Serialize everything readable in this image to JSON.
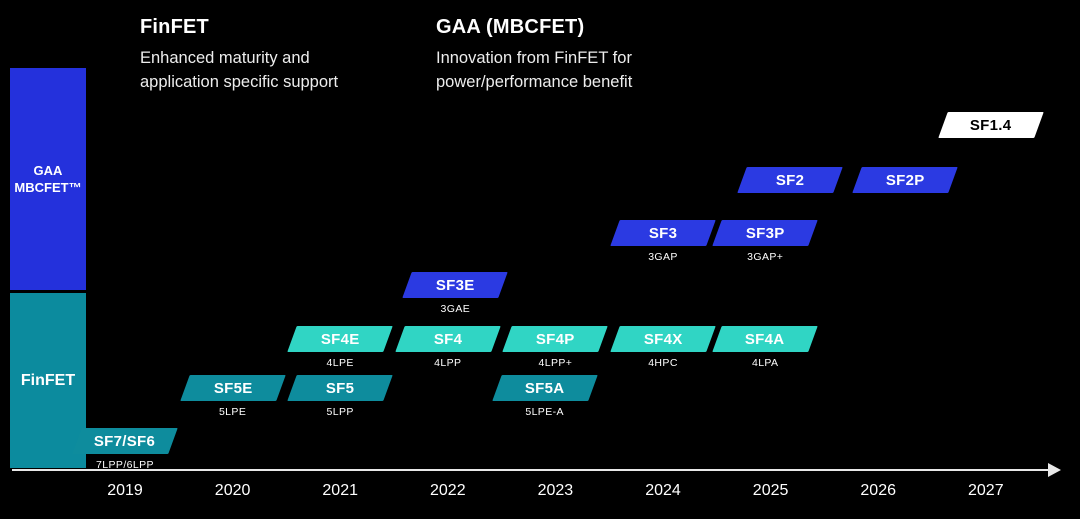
{
  "header": {
    "finfet": {
      "title": "FinFET",
      "subtitle": "Enhanced maturity and\napplication specific support"
    },
    "gaa": {
      "title": "GAA (MBCFET)",
      "subtitle": "Innovation from FinFET for\npower/performance benefit"
    }
  },
  "tracks": {
    "gaa": {
      "label": "GAA\nMBCFET™",
      "color": "#2431dc"
    },
    "finfet": {
      "label": "FinFET",
      "color": "#0c8b9e"
    }
  },
  "chart_data": {
    "type": "timeline",
    "x_axis": {
      "ticks": [
        "2019",
        "2020",
        "2021",
        "2022",
        "2023",
        "2024",
        "2025",
        "2026",
        "2027"
      ]
    },
    "colors": {
      "teal": "#0e8c9d",
      "cyan": "#30d5c4",
      "blue": "#2b3ae2",
      "white": "#ffffff"
    },
    "nodes": [
      {
        "label": "SF7/SF6",
        "sublabel": "7LPP/6LPP",
        "year": 2019.0,
        "row": "row1",
        "color": "teal"
      },
      {
        "label": "SF5E",
        "sublabel": "5LPE",
        "year": 2020.0,
        "row": "row2",
        "color": "teal"
      },
      {
        "label": "SF5",
        "sublabel": "5LPP",
        "year": 2021.0,
        "row": "row2",
        "color": "teal"
      },
      {
        "label": "SF5A",
        "sublabel": "5LPE-A",
        "year": 2022.9,
        "row": "row2",
        "color": "teal"
      },
      {
        "label": "SF4E",
        "sublabel": "4LPE",
        "year": 2021.0,
        "row": "row3",
        "color": "cyan"
      },
      {
        "label": "SF4",
        "sublabel": "4LPP",
        "year": 2022.0,
        "row": "row3",
        "color": "cyan"
      },
      {
        "label": "SF4P",
        "sublabel": "4LPP+",
        "year": 2023.0,
        "row": "row3",
        "color": "cyan"
      },
      {
        "label": "SF4X",
        "sublabel": "4HPC",
        "year": 2024.0,
        "row": "row3",
        "color": "cyan"
      },
      {
        "label": "SF4A",
        "sublabel": "4LPA",
        "year": 2024.95,
        "row": "row3",
        "color": "cyan"
      },
      {
        "label": "SF3E",
        "sublabel": "3GAE",
        "year": 2022.07,
        "row": "row4",
        "color": "blue"
      },
      {
        "label": "SF3",
        "sublabel": "3GAP",
        "year": 2024.0,
        "row": "row5",
        "color": "blue"
      },
      {
        "label": "SF3P",
        "sublabel": "3GAP+",
        "year": 2024.95,
        "row": "row5",
        "color": "blue"
      },
      {
        "label": "SF2",
        "sublabel": "",
        "year": 2025.18,
        "row": "row6",
        "color": "blue"
      },
      {
        "label": "SF2P",
        "sublabel": "",
        "year": 2026.25,
        "row": "row6",
        "color": "blue"
      },
      {
        "label": "SF1.4",
        "sublabel": "",
        "year": 2027.05,
        "row": "row7",
        "color": "white"
      }
    ]
  }
}
